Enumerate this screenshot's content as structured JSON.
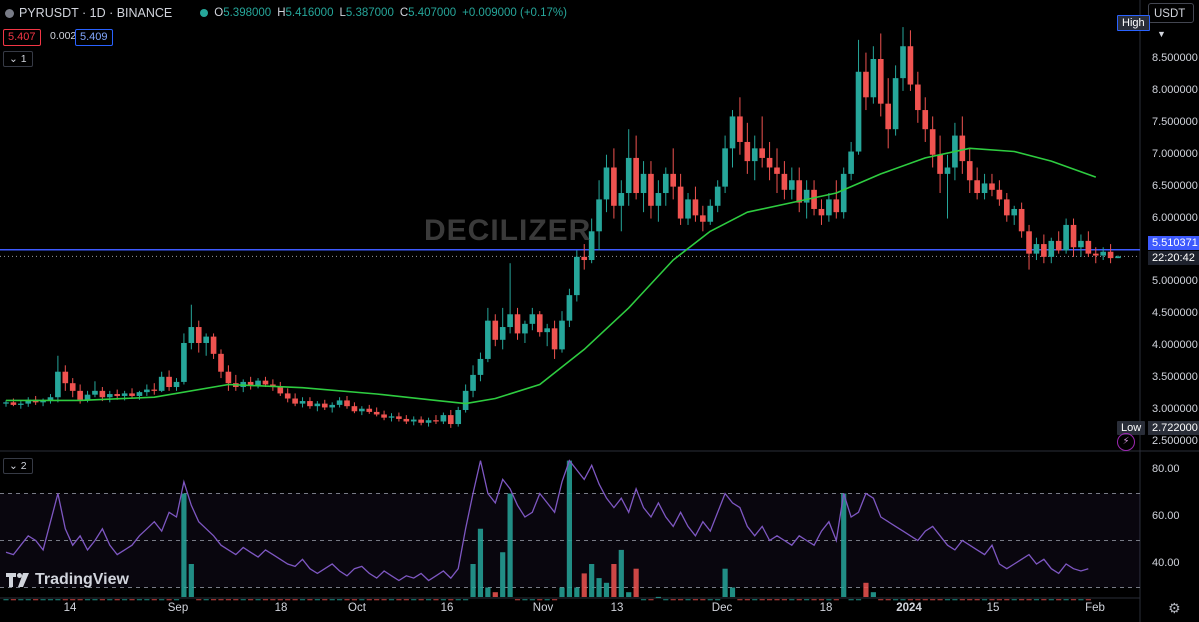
{
  "header": {
    "symbol": "PYRUSDT · 1D · BINANCE",
    "ohlc": {
      "o_label": "O",
      "o": "5.398000",
      "h_label": "H",
      "h": "5.416000",
      "l_label": "L",
      "l": "5.387000",
      "c_label": "C",
      "c": "5.407000",
      "change": "+0.009000 (+0.17%)"
    },
    "sell_price": "5.407",
    "spread": "0.002",
    "buy_price": "5.409",
    "pane1_label": "1",
    "pane2_label": "2"
  },
  "currency_selector": "USDT",
  "watermark": "DECILIZER",
  "logo_text": "TradingView",
  "price_axis": {
    "ticks": [
      "8.500000",
      "8.000000",
      "7.500000",
      "7.000000",
      "6.500000",
      "6.000000",
      "5.000000",
      "4.500000",
      "4.000000",
      "3.500000",
      "3.000000",
      "2.500000"
    ],
    "high_label": "High",
    "low_label": "Low",
    "low_value": "2.722000",
    "hline_value": "5.510371",
    "countdown": "22:20:42"
  },
  "indicator_axis": {
    "ticks": [
      "80.00",
      "60.00",
      "40.00"
    ]
  },
  "time_axis": {
    "labels": [
      "14",
      "Sep",
      "18",
      "Oct",
      "16",
      "Nov",
      "13",
      "Dec",
      "18",
      "2024",
      "15",
      "Feb"
    ]
  },
  "colors": {
    "up": "#26a69a",
    "down": "#ef5350",
    "ma": "#2ecc40",
    "hline": "#3d5afe",
    "indicator": "#7e57c2"
  },
  "chart_data": {
    "type": "candlestick",
    "symbol": "PYRUSDT",
    "interval": "1D",
    "ylim": [
      2.5,
      9.0
    ],
    "candles": [
      [
        3.1,
        3.15,
        3.05,
        3.12
      ],
      [
        3.12,
        3.18,
        3.06,
        3.08
      ],
      [
        3.08,
        3.14,
        3.02,
        3.1
      ],
      [
        3.1,
        3.2,
        3.05,
        3.16
      ],
      [
        3.16,
        3.22,
        3.08,
        3.12
      ],
      [
        3.12,
        3.18,
        3.06,
        3.15
      ],
      [
        3.15,
        3.25,
        3.1,
        3.2
      ],
      [
        3.2,
        3.85,
        3.12,
        3.6
      ],
      [
        3.6,
        3.7,
        3.3,
        3.42
      ],
      [
        3.42,
        3.5,
        3.2,
        3.3
      ],
      [
        3.3,
        3.4,
        3.1,
        3.16
      ],
      [
        3.16,
        3.3,
        3.12,
        3.24
      ],
      [
        3.24,
        3.45,
        3.2,
        3.3
      ],
      [
        3.3,
        3.36,
        3.14,
        3.2
      ],
      [
        3.2,
        3.3,
        3.12,
        3.25
      ],
      [
        3.25,
        3.32,
        3.16,
        3.22
      ],
      [
        3.22,
        3.3,
        3.15,
        3.26
      ],
      [
        3.26,
        3.34,
        3.18,
        3.22
      ],
      [
        3.22,
        3.3,
        3.16,
        3.28
      ],
      [
        3.28,
        3.4,
        3.22,
        3.32
      ],
      [
        3.32,
        3.42,
        3.24,
        3.3
      ],
      [
        3.3,
        3.6,
        3.28,
        3.52
      ],
      [
        3.52,
        3.62,
        3.3,
        3.36
      ],
      [
        3.36,
        3.5,
        3.3,
        3.44
      ],
      [
        3.44,
        4.2,
        3.4,
        4.05
      ],
      [
        4.05,
        4.65,
        3.95,
        4.3
      ],
      [
        4.3,
        4.4,
        3.9,
        4.05
      ],
      [
        4.05,
        4.2,
        3.85,
        4.15
      ],
      [
        4.15,
        4.2,
        3.8,
        3.88
      ],
      [
        3.88,
        3.95,
        3.5,
        3.6
      ],
      [
        3.6,
        3.7,
        3.3,
        3.42
      ],
      [
        3.42,
        3.55,
        3.3,
        3.36
      ],
      [
        3.36,
        3.48,
        3.28,
        3.44
      ],
      [
        3.44,
        3.52,
        3.32,
        3.38
      ],
      [
        3.38,
        3.5,
        3.34,
        3.46
      ],
      [
        3.46,
        3.52,
        3.36,
        3.4
      ],
      [
        3.4,
        3.48,
        3.3,
        3.36
      ],
      [
        3.36,
        3.44,
        3.22,
        3.26
      ],
      [
        3.26,
        3.34,
        3.12,
        3.18
      ],
      [
        3.18,
        3.26,
        3.06,
        3.1
      ],
      [
        3.1,
        3.2,
        3.04,
        3.14
      ],
      [
        3.14,
        3.2,
        3.02,
        3.06
      ],
      [
        3.06,
        3.14,
        2.98,
        3.1
      ],
      [
        3.1,
        3.16,
        3.0,
        3.04
      ],
      [
        3.04,
        3.12,
        2.96,
        3.08
      ],
      [
        3.08,
        3.2,
        3.04,
        3.15
      ],
      [
        3.15,
        3.22,
        3.02,
        3.06
      ],
      [
        3.06,
        3.12,
        2.95,
        2.98
      ],
      [
        2.98,
        3.06,
        2.92,
        3.02
      ],
      [
        3.02,
        3.08,
        2.94,
        2.97
      ],
      [
        2.97,
        3.04,
        2.9,
        2.93
      ],
      [
        2.93,
        2.99,
        2.84,
        2.88
      ],
      [
        2.88,
        2.95,
        2.82,
        2.9
      ],
      [
        2.9,
        2.96,
        2.82,
        2.86
      ],
      [
        2.86,
        2.92,
        2.78,
        2.82
      ],
      [
        2.82,
        2.9,
        2.76,
        2.85
      ],
      [
        2.85,
        2.9,
        2.76,
        2.8
      ],
      [
        2.8,
        2.88,
        2.74,
        2.84
      ],
      [
        2.84,
        2.92,
        2.78,
        2.82
      ],
      [
        2.82,
        2.96,
        2.78,
        2.92
      ],
      [
        2.92,
        3.0,
        2.72,
        2.78
      ],
      [
        2.78,
        3.05,
        2.74,
        3.0
      ],
      [
        3.0,
        3.4,
        2.96,
        3.3
      ],
      [
        3.3,
        3.7,
        3.2,
        3.55
      ],
      [
        3.55,
        3.9,
        3.45,
        3.8
      ],
      [
        3.8,
        4.6,
        3.75,
        4.4
      ],
      [
        4.4,
        4.5,
        4.0,
        4.1
      ],
      [
        4.1,
        4.6,
        3.95,
        4.3
      ],
      [
        4.3,
        5.3,
        4.2,
        4.5
      ],
      [
        4.5,
        4.6,
        4.1,
        4.2
      ],
      [
        4.2,
        4.4,
        4.05,
        4.35
      ],
      [
        4.35,
        4.6,
        4.25,
        4.5
      ],
      [
        4.5,
        4.55,
        4.15,
        4.22
      ],
      [
        4.22,
        4.35,
        4.0,
        4.28
      ],
      [
        4.28,
        4.4,
        3.8,
        3.95
      ],
      [
        3.95,
        4.55,
        3.9,
        4.4
      ],
      [
        4.4,
        4.9,
        4.3,
        4.8
      ],
      [
        4.8,
        5.5,
        4.7,
        5.4
      ],
      [
        5.4,
        5.6,
        5.2,
        5.35
      ],
      [
        5.35,
        6.0,
        5.3,
        5.8
      ],
      [
        5.8,
        6.6,
        5.5,
        6.3
      ],
      [
        6.3,
        7.0,
        6.1,
        6.8
      ],
      [
        6.8,
        7.1,
        6.0,
        6.2
      ],
      [
        6.2,
        6.6,
        5.8,
        6.4
      ],
      [
        6.4,
        7.4,
        6.2,
        6.95
      ],
      [
        6.95,
        7.3,
        6.3,
        6.4
      ],
      [
        6.4,
        6.9,
        6.1,
        6.7
      ],
      [
        6.7,
        6.9,
        6.0,
        6.2
      ],
      [
        6.2,
        6.6,
        5.95,
        6.4
      ],
      [
        6.4,
        6.8,
        6.2,
        6.7
      ],
      [
        6.7,
        7.1,
        6.3,
        6.5
      ],
      [
        6.5,
        6.7,
        5.9,
        6.0
      ],
      [
        6.0,
        6.4,
        5.9,
        6.3
      ],
      [
        6.3,
        6.5,
        5.95,
        6.05
      ],
      [
        6.05,
        6.2,
        5.8,
        5.95
      ],
      [
        5.95,
        6.3,
        5.9,
        6.2
      ],
      [
        6.2,
        6.6,
        6.1,
        6.5
      ],
      [
        6.5,
        7.3,
        6.4,
        7.1
      ],
      [
        7.1,
        7.7,
        6.8,
        7.6
      ],
      [
        7.6,
        7.9,
        7.0,
        7.2
      ],
      [
        7.2,
        7.5,
        6.7,
        6.9
      ],
      [
        6.9,
        7.3,
        6.6,
        7.1
      ],
      [
        7.1,
        7.6,
        6.8,
        6.95
      ],
      [
        6.95,
        7.2,
        6.6,
        6.8
      ],
      [
        6.8,
        7.1,
        6.4,
        6.7
      ],
      [
        6.7,
        6.9,
        6.3,
        6.45
      ],
      [
        6.45,
        6.8,
        6.3,
        6.6
      ],
      [
        6.6,
        6.8,
        6.1,
        6.25
      ],
      [
        6.25,
        6.6,
        6.0,
        6.45
      ],
      [
        6.45,
        6.6,
        6.05,
        6.15
      ],
      [
        6.15,
        6.3,
        5.9,
        6.05
      ],
      [
        6.05,
        6.4,
        5.95,
        6.3
      ],
      [
        6.3,
        6.6,
        6.0,
        6.1
      ],
      [
        6.1,
        6.8,
        6.0,
        6.7
      ],
      [
        6.7,
        7.2,
        6.6,
        7.05
      ],
      [
        7.05,
        8.8,
        7.0,
        8.3
      ],
      [
        8.3,
        8.6,
        7.7,
        7.9
      ],
      [
        7.9,
        8.7,
        7.8,
        8.5
      ],
      [
        8.5,
        8.9,
        7.6,
        7.8
      ],
      [
        7.8,
        8.2,
        7.1,
        7.4
      ],
      [
        7.4,
        8.4,
        7.3,
        8.2
      ],
      [
        8.2,
        9.0,
        8.0,
        8.7
      ],
      [
        8.7,
        8.95,
        8.0,
        8.1
      ],
      [
        8.1,
        8.3,
        7.5,
        7.7
      ],
      [
        7.7,
        7.9,
        7.2,
        7.4
      ],
      [
        7.4,
        7.6,
        6.8,
        7.0
      ],
      [
        7.0,
        7.3,
        6.4,
        6.7
      ],
      [
        6.7,
        7.0,
        6.0,
        6.8
      ],
      [
        6.8,
        7.5,
        6.6,
        7.3
      ],
      [
        7.3,
        7.6,
        6.7,
        6.9
      ],
      [
        6.9,
        7.1,
        6.4,
        6.6
      ],
      [
        6.6,
        6.8,
        6.3,
        6.4
      ],
      [
        6.4,
        6.7,
        6.3,
        6.55
      ],
      [
        6.55,
        6.7,
        6.35,
        6.45
      ],
      [
        6.45,
        6.6,
        6.2,
        6.3
      ],
      [
        6.3,
        6.4,
        5.95,
        6.05
      ],
      [
        6.05,
        6.2,
        5.9,
        6.15
      ],
      [
        6.15,
        6.25,
        5.7,
        5.8
      ],
      [
        5.8,
        5.9,
        5.2,
        5.45
      ],
      [
        5.45,
        5.7,
        5.35,
        5.6
      ],
      [
        5.6,
        5.75,
        5.3,
        5.4
      ],
      [
        5.4,
        5.7,
        5.3,
        5.65
      ],
      [
        5.65,
        5.8,
        5.45,
        5.5
      ],
      [
        5.5,
        6.0,
        5.45,
        5.9
      ],
      [
        5.9,
        6.0,
        5.4,
        5.55
      ],
      [
        5.55,
        5.75,
        5.4,
        5.65
      ],
      [
        5.65,
        5.8,
        5.4,
        5.45
      ],
      [
        5.45,
        5.55,
        5.3,
        5.42
      ],
      [
        5.42,
        5.55,
        5.35,
        5.48
      ],
      [
        5.48,
        5.6,
        5.3,
        5.38
      ],
      [
        5.38,
        5.42,
        5.38,
        5.407
      ]
    ],
    "ma_line": {
      "name": "",
      "x_index": [
        0,
        10,
        20,
        30,
        40,
        50,
        58,
        62,
        66,
        72,
        78,
        84,
        90,
        95,
        100,
        106,
        112,
        118,
        124,
        130,
        136,
        141,
        147
      ],
      "values": [
        3.15,
        3.15,
        3.2,
        3.4,
        3.35,
        3.25,
        3.15,
        3.1,
        3.18,
        3.4,
        3.95,
        4.6,
        5.35,
        5.8,
        6.1,
        6.25,
        6.4,
        6.7,
        6.95,
        7.1,
        7.05,
        6.9,
        6.65
      ]
    },
    "hline": 5.510371,
    "last_price": 5.407,
    "indicator": {
      "ylim": [
        25,
        90
      ],
      "levels": [
        70,
        50,
        30
      ],
      "line_values": [
        45,
        44,
        48,
        52,
        50,
        46,
        58,
        70,
        55,
        48,
        52,
        46,
        50,
        55,
        48,
        44,
        46,
        48,
        52,
        55,
        58,
        54,
        62,
        60,
        75,
        65,
        58,
        55,
        52,
        48,
        46,
        44,
        47,
        45,
        43,
        46,
        44,
        42,
        40,
        39,
        42,
        38,
        36,
        38,
        40,
        37,
        35,
        38,
        39,
        36,
        34,
        37,
        35,
        33,
        35,
        34,
        36,
        33,
        35,
        37,
        34,
        38,
        55,
        70,
        84,
        70,
        66,
        76,
        72,
        65,
        60,
        62,
        70,
        66,
        62,
        75,
        84,
        80,
        76,
        82,
        74,
        68,
        64,
        68,
        62,
        72,
        64,
        60,
        66,
        60,
        56,
        62,
        56,
        52,
        58,
        54,
        62,
        70,
        66,
        64,
        56,
        52,
        56,
        50,
        52,
        50,
        48,
        52,
        50,
        48,
        54,
        58,
        50,
        70,
        60,
        62,
        70,
        68,
        60,
        58,
        56,
        54,
        52,
        50,
        54,
        56,
        52,
        48,
        46,
        50,
        48,
        46,
        44,
        48,
        40,
        38,
        40,
        42,
        44,
        40,
        42,
        38,
        36,
        40,
        38,
        37,
        38
      ],
      "volume_values": [
        10,
        8,
        7,
        6,
        8,
        9,
        8,
        20,
        12,
        9,
        8,
        7,
        10,
        9,
        8,
        7,
        8,
        9,
        8,
        10,
        12,
        9,
        14,
        12,
        70,
        40,
        20,
        14,
        12,
        10,
        8,
        7,
        8,
        6,
        7,
        6,
        8,
        7,
        6,
        5,
        6,
        5,
        6,
        5,
        7,
        6,
        5,
        6,
        5,
        4,
        5,
        4,
        5,
        4,
        5,
        4,
        5,
        4,
        6,
        8,
        18,
        16,
        25,
        40,
        55,
        30,
        28,
        45,
        70,
        22,
        18,
        16,
        20,
        14,
        22,
        30,
        84,
        30,
        36,
        40,
        34,
        32,
        40,
        46,
        28,
        38,
        24,
        20,
        26,
        18,
        16,
        20,
        14,
        12,
        16,
        14,
        22,
        38,
        30,
        24,
        20,
        18,
        22,
        18,
        16,
        14,
        12,
        16,
        14,
        12,
        14,
        16,
        12,
        70,
        22,
        24,
        32,
        28,
        22,
        20,
        16,
        14,
        12,
        10,
        14,
        16,
        12,
        10,
        8,
        10,
        9,
        8,
        7,
        9,
        6,
        5,
        6,
        7,
        8,
        6,
        5,
        4,
        5,
        4,
        5,
        4,
        3
      ]
    }
  }
}
